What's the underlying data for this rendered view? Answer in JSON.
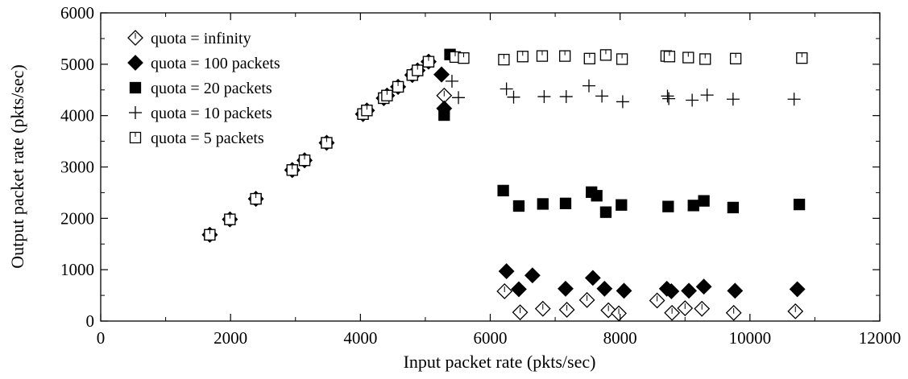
{
  "chart_data": {
    "type": "scatter",
    "title": "",
    "xlabel": "Input packet rate (pkts/sec)",
    "ylabel": "Output packet rate (pkts/sec)",
    "xlim": [
      0,
      12000
    ],
    "ylim": [
      0,
      6000
    ],
    "xticks": [
      0,
      2000,
      4000,
      6000,
      8000,
      10000,
      12000
    ],
    "yticks": [
      0,
      1000,
      2000,
      3000,
      4000,
      5000,
      6000
    ],
    "grid": false,
    "legend_position": "top-left",
    "series": [
      {
        "name": "quota = infinity",
        "marker": "diamond-open",
        "points": [
          [
            1680,
            1680
          ],
          [
            1990,
            1980
          ],
          [
            2390,
            2380
          ],
          [
            2950,
            2940
          ],
          [
            3140,
            3130
          ],
          [
            3480,
            3470
          ],
          [
            4040,
            4030
          ],
          [
            4100,
            4100
          ],
          [
            4360,
            4340
          ],
          [
            4410,
            4390
          ],
          [
            4580,
            4560
          ],
          [
            4800,
            4790
          ],
          [
            4880,
            4880
          ],
          [
            5050,
            5050
          ],
          [
            5250,
            4800
          ],
          [
            5290,
            4390
          ],
          [
            6220,
            580
          ],
          [
            6460,
            170
          ],
          [
            6810,
            240
          ],
          [
            7180,
            220
          ],
          [
            7490,
            410
          ],
          [
            7820,
            210
          ],
          [
            7980,
            150
          ],
          [
            8570,
            400
          ],
          [
            8800,
            160
          ],
          [
            9000,
            250
          ],
          [
            9260,
            240
          ],
          [
            9750,
            160
          ],
          [
            10700,
            190
          ]
        ]
      },
      {
        "name": "quota = 100 packets",
        "marker": "diamond-filled",
        "points": [
          [
            1680,
            1680
          ],
          [
            1990,
            1980
          ],
          [
            2390,
            2380
          ],
          [
            2950,
            2940
          ],
          [
            3140,
            3130
          ],
          [
            3480,
            3470
          ],
          [
            4040,
            4030
          ],
          [
            4100,
            4100
          ],
          [
            4360,
            4340
          ],
          [
            4410,
            4390
          ],
          [
            4580,
            4560
          ],
          [
            4800,
            4790
          ],
          [
            4880,
            4880
          ],
          [
            5050,
            5050
          ],
          [
            5250,
            4800
          ],
          [
            5290,
            4140
          ],
          [
            6250,
            970
          ],
          [
            6440,
            620
          ],
          [
            6650,
            890
          ],
          [
            7160,
            630
          ],
          [
            7580,
            840
          ],
          [
            7760,
            630
          ],
          [
            8060,
            590
          ],
          [
            8720,
            630
          ],
          [
            8790,
            580
          ],
          [
            9060,
            590
          ],
          [
            9290,
            670
          ],
          [
            9770,
            590
          ],
          [
            10730,
            620
          ]
        ]
      },
      {
        "name": "quota = 20 packets",
        "marker": "square-filled",
        "points": [
          [
            1680,
            1680
          ],
          [
            1990,
            1980
          ],
          [
            2390,
            2380
          ],
          [
            2950,
            2940
          ],
          [
            3140,
            3130
          ],
          [
            3480,
            3470
          ],
          [
            4040,
            4030
          ],
          [
            4100,
            4100
          ],
          [
            4360,
            4340
          ],
          [
            4410,
            4390
          ],
          [
            4580,
            4560
          ],
          [
            4800,
            4790
          ],
          [
            4880,
            4880
          ],
          [
            5050,
            5050
          ],
          [
            5290,
            4010
          ],
          [
            5380,
            5190
          ],
          [
            6200,
            2540
          ],
          [
            6440,
            2240
          ],
          [
            6810,
            2280
          ],
          [
            7160,
            2290
          ],
          [
            7560,
            2510
          ],
          [
            7640,
            2440
          ],
          [
            7780,
            2120
          ],
          [
            8020,
            2260
          ],
          [
            8740,
            2230
          ],
          [
            9130,
            2250
          ],
          [
            9290,
            2340
          ],
          [
            9740,
            2210
          ],
          [
            10760,
            2270
          ]
        ]
      },
      {
        "name": "quota = 10 packets",
        "marker": "plus",
        "points": [
          [
            1680,
            1680
          ],
          [
            1990,
            1980
          ],
          [
            2390,
            2380
          ],
          [
            2950,
            2940
          ],
          [
            3140,
            3130
          ],
          [
            3480,
            3470
          ],
          [
            4040,
            4030
          ],
          [
            4100,
            4100
          ],
          [
            4360,
            4340
          ],
          [
            4410,
            4390
          ],
          [
            4580,
            4560
          ],
          [
            4800,
            4790
          ],
          [
            4880,
            4880
          ],
          [
            5050,
            5050
          ],
          [
            5410,
            4670
          ],
          [
            5510,
            4350
          ],
          [
            6250,
            4520
          ],
          [
            6360,
            4360
          ],
          [
            6830,
            4370
          ],
          [
            7170,
            4370
          ],
          [
            7520,
            4580
          ],
          [
            7720,
            4380
          ],
          [
            8040,
            4270
          ],
          [
            8730,
            4380
          ],
          [
            8750,
            4330
          ],
          [
            9110,
            4300
          ],
          [
            9340,
            4400
          ],
          [
            9740,
            4320
          ],
          [
            10680,
            4320
          ]
        ]
      },
      {
        "name": "quota = 5 packets",
        "marker": "square-open",
        "points": [
          [
            1680,
            1680
          ],
          [
            1990,
            1980
          ],
          [
            2390,
            2380
          ],
          [
            2950,
            2940
          ],
          [
            3140,
            3130
          ],
          [
            3480,
            3470
          ],
          [
            4040,
            4030
          ],
          [
            4100,
            4100
          ],
          [
            4360,
            4340
          ],
          [
            4410,
            4390
          ],
          [
            4580,
            4560
          ],
          [
            4800,
            4790
          ],
          [
            4880,
            4880
          ],
          [
            5050,
            5050
          ],
          [
            5460,
            5140
          ],
          [
            5590,
            5120
          ],
          [
            6210,
            5090
          ],
          [
            6500,
            5150
          ],
          [
            6800,
            5160
          ],
          [
            7150,
            5160
          ],
          [
            7530,
            5110
          ],
          [
            7780,
            5180
          ],
          [
            8030,
            5100
          ],
          [
            8710,
            5160
          ],
          [
            8760,
            5150
          ],
          [
            9050,
            5130
          ],
          [
            9310,
            5100
          ],
          [
            9780,
            5110
          ],
          [
            10800,
            5120
          ]
        ]
      }
    ]
  }
}
